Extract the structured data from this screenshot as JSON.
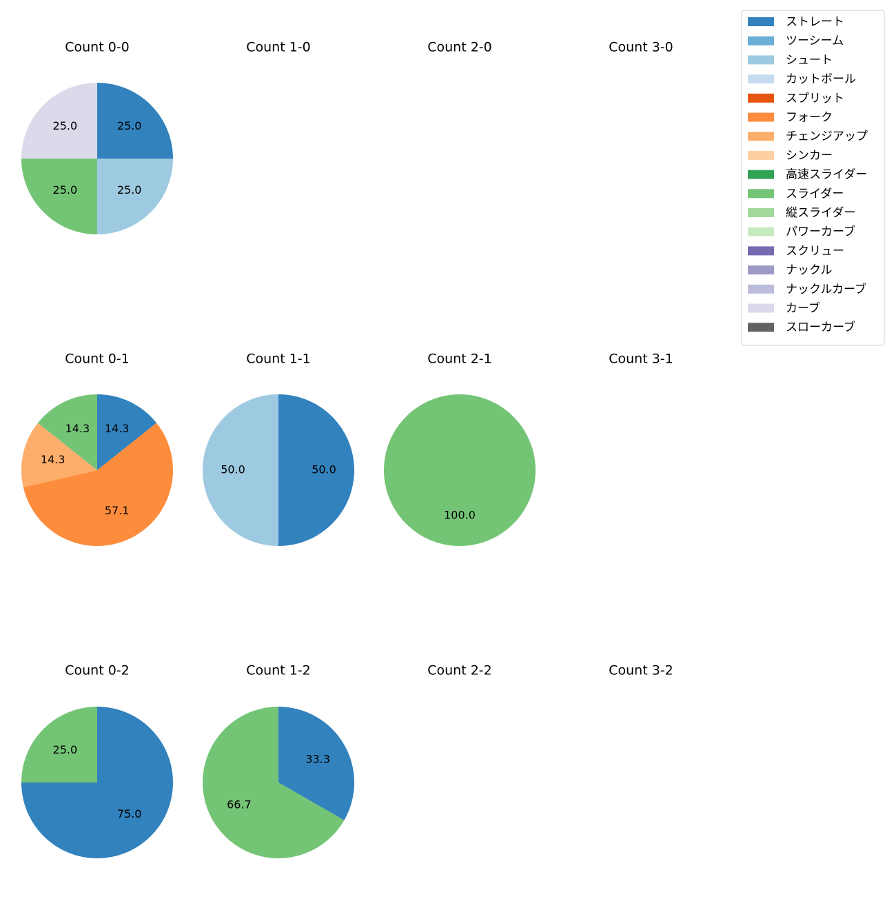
{
  "chart_data": {
    "type": "pie",
    "legend_position": "top-right",
    "legend": [
      {
        "name": "ストレート",
        "color": "#3182bd"
      },
      {
        "name": "ツーシーム",
        "color": "#6baed6"
      },
      {
        "name": "シュート",
        "color": "#9ecae1"
      },
      {
        "name": "カットボール",
        "color": "#c6dbef"
      },
      {
        "name": "スプリット",
        "color": "#e6550d"
      },
      {
        "name": "フォーク",
        "color": "#fd8d3c"
      },
      {
        "name": "チェンジアップ",
        "color": "#fdae6b"
      },
      {
        "name": "シンカー",
        "color": "#fdd0a2"
      },
      {
        "name": "高速スライダー",
        "color": "#31a354"
      },
      {
        "name": "スライダー",
        "color": "#74c476"
      },
      {
        "name": "縦スライダー",
        "color": "#a1d99b"
      },
      {
        "name": "パワーカーブ",
        "color": "#c7e9c0"
      },
      {
        "name": "スクリュー",
        "color": "#756bb1"
      },
      {
        "name": "ナックル",
        "color": "#9e9ac8"
      },
      {
        "name": "ナックルカーブ",
        "color": "#bcbddc"
      },
      {
        "name": "カーブ",
        "color": "#dadaeb"
      },
      {
        "name": "スローカーブ",
        "color": "#636363"
      }
    ],
    "panels": [
      {
        "title": "Count 0-0",
        "slices": [
          {
            "pitch": "ストレート",
            "value": 25.0,
            "label": "25.0"
          },
          {
            "pitch": "シュート",
            "value": 25.0,
            "label": "25.0"
          },
          {
            "pitch": "スライダー",
            "value": 25.0,
            "label": "25.0"
          },
          {
            "pitch": "カーブ",
            "value": 25.0,
            "label": "25.0"
          }
        ]
      },
      {
        "title": "Count 1-0",
        "slices": []
      },
      {
        "title": "Count 2-0",
        "slices": []
      },
      {
        "title": "Count 3-0",
        "slices": []
      },
      {
        "title": "Count 0-1",
        "slices": [
          {
            "pitch": "ストレート",
            "value": 14.3,
            "label": "14.3"
          },
          {
            "pitch": "フォーク",
            "value": 57.1,
            "label": "57.1"
          },
          {
            "pitch": "チェンジアップ",
            "value": 14.3,
            "label": "14.3"
          },
          {
            "pitch": "スライダー",
            "value": 14.3,
            "label": "14.3"
          }
        ]
      },
      {
        "title": "Count 1-1",
        "slices": [
          {
            "pitch": "ストレート",
            "value": 50.0,
            "label": "50.0"
          },
          {
            "pitch": "シュート",
            "value": 50.0,
            "label": "50.0"
          }
        ]
      },
      {
        "title": "Count 2-1",
        "slices": [
          {
            "pitch": "スライダー",
            "value": 100.0,
            "label": "100.0"
          }
        ]
      },
      {
        "title": "Count 3-1",
        "slices": []
      },
      {
        "title": "Count 0-2",
        "slices": [
          {
            "pitch": "ストレート",
            "value": 75.0,
            "label": "75.0"
          },
          {
            "pitch": "スライダー",
            "value": 25.0,
            "label": "25.0"
          }
        ]
      },
      {
        "title": "Count 1-2",
        "slices": [
          {
            "pitch": "ストレート",
            "value": 33.3,
            "label": "33.3"
          },
          {
            "pitch": "スライダー",
            "value": 66.7,
            "label": "66.7"
          }
        ]
      },
      {
        "title": "Count 2-2",
        "slices": []
      },
      {
        "title": "Count 3-2",
        "slices": []
      }
    ]
  }
}
